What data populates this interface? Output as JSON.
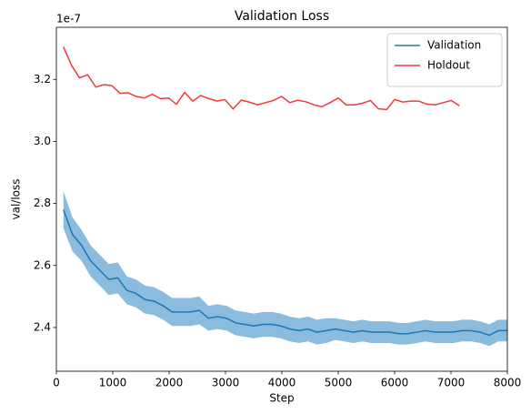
{
  "chart_data": {
    "type": "line",
    "title": "Validation Loss",
    "xlabel": "Step",
    "ylabel": "val/loss",
    "y_offset_label": "1e-7",
    "xlim": [
      0,
      8000
    ],
    "xticks": [
      0,
      1000,
      2000,
      3000,
      4000,
      5000,
      6000,
      7000,
      8000
    ],
    "ylim": [
      2.259,
      3.368
    ],
    "yticks": [
      2.4,
      2.6,
      2.8,
      {
        "value": 3.0,
        "label": "3.0"
      },
      3.2
    ],
    "legend": "upper right",
    "series": [
      {
        "name": "Validation",
        "color": "#1f77b4",
        "band_color": "#5a9fd0",
        "x": [
          125,
          286,
          446,
          607,
          768,
          929,
          1089,
          1250,
          1411,
          1571,
          1732,
          1893,
          2054,
          2214,
          2375,
          2536,
          2696,
          2857,
          3018,
          3179,
          3339,
          3500,
          3661,
          3821,
          3982,
          4143,
          4304,
          4464,
          4625,
          4786,
          4946,
          5107,
          5268,
          5429,
          5589,
          5750,
          5911,
          6071,
          6232,
          6393,
          6554,
          6714,
          6875,
          7036,
          7196,
          7357,
          7518,
          7679,
          7839,
          8000
        ],
        "values": [
          2.78,
          2.7,
          2.665,
          2.615,
          2.585,
          2.555,
          2.56,
          2.52,
          2.51,
          2.49,
          2.485,
          2.47,
          2.45,
          2.45,
          2.45,
          2.455,
          2.43,
          2.435,
          2.43,
          2.415,
          2.41,
          2.405,
          2.41,
          2.41,
          2.405,
          2.395,
          2.39,
          2.395,
          2.385,
          2.39,
          2.395,
          2.39,
          2.385,
          2.39,
          2.385,
          2.385,
          2.385,
          2.38,
          2.38,
          2.385,
          2.39,
          2.385,
          2.385,
          2.385,
          2.39,
          2.39,
          2.385,
          2.375,
          2.39,
          2.39
        ],
        "errors": [
          0.06,
          0.055,
          0.05,
          0.05,
          0.05,
          0.05,
          0.05,
          0.045,
          0.045,
          0.045,
          0.045,
          0.045,
          0.045,
          0.045,
          0.045,
          0.045,
          0.04,
          0.04,
          0.04,
          0.04,
          0.04,
          0.04,
          0.04,
          0.04,
          0.04,
          0.04,
          0.04,
          0.04,
          0.04,
          0.04,
          0.035,
          0.035,
          0.035,
          0.035,
          0.035,
          0.035,
          0.035,
          0.035,
          0.035,
          0.035,
          0.035,
          0.035,
          0.035,
          0.035,
          0.035,
          0.035,
          0.035,
          0.035,
          0.035,
          0.035
        ]
      },
      {
        "name": "Holdout",
        "color": "#ef3b3b",
        "x": [
          125,
          270,
          410,
          555,
          700,
          840,
          985,
          1130,
          1270,
          1415,
          1560,
          1700,
          1845,
          1990,
          2130,
          2275,
          2420,
          2560,
          2705,
          2850,
          2990,
          3135,
          3280,
          3420,
          3565,
          3710,
          3850,
          3995,
          4140,
          4280,
          4425,
          4570,
          4710,
          4855,
          5000,
          5140,
          5285,
          5430,
          5570,
          5715,
          5860,
          6000,
          6145,
          6290,
          6430,
          6575,
          6720,
          6860,
          7005,
          7150
        ],
        "values": [
          3.305,
          3.245,
          3.205,
          3.215,
          3.175,
          3.183,
          3.18,
          3.155,
          3.157,
          3.145,
          3.14,
          3.152,
          3.138,
          3.14,
          3.12,
          3.158,
          3.13,
          3.148,
          3.138,
          3.13,
          3.135,
          3.105,
          3.133,
          3.127,
          3.118,
          3.125,
          3.132,
          3.145,
          3.125,
          3.133,
          3.128,
          3.118,
          3.112,
          3.125,
          3.14,
          3.118,
          3.118,
          3.123,
          3.132,
          3.105,
          3.103,
          3.135,
          3.127,
          3.13,
          3.13,
          3.12,
          3.118,
          3.125,
          3.132,
          3.115
        ]
      }
    ]
  }
}
